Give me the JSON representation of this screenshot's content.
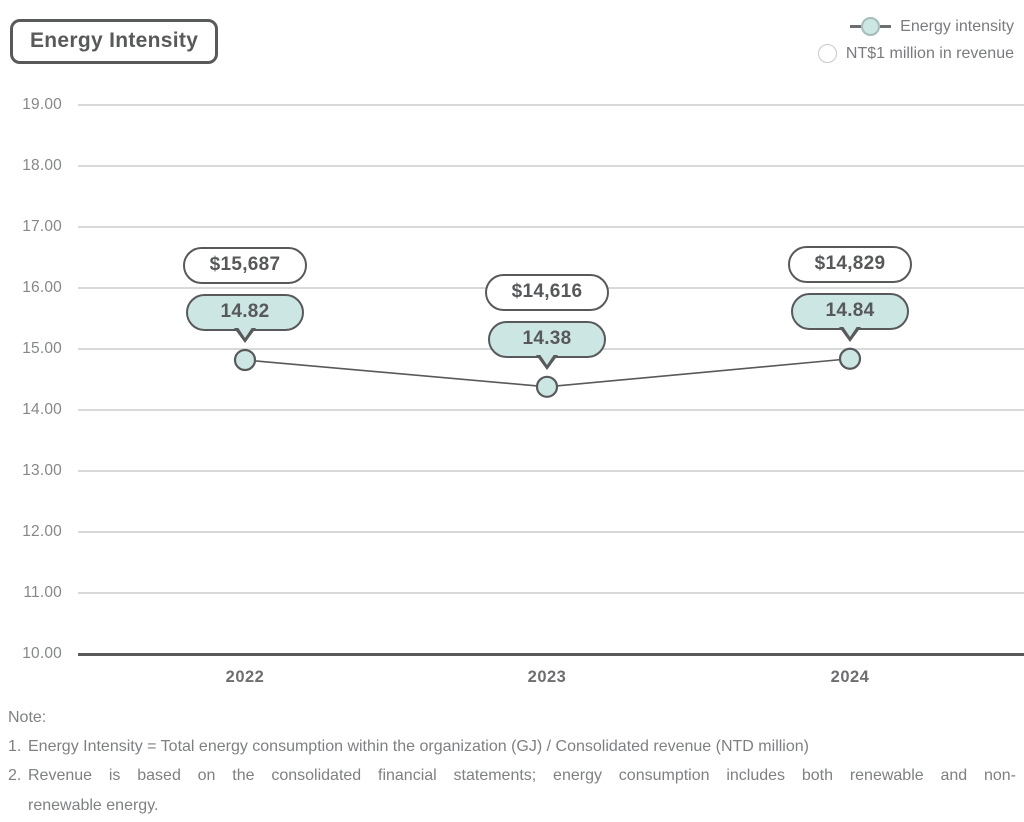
{
  "title": "Energy Intensity",
  "legend": {
    "position": "top-right",
    "items": [
      {
        "id": "energy-intensity",
        "label": "Energy intensity",
        "marker": "teal-circle-on-line"
      },
      {
        "id": "revenue",
        "label": "NT$1 million in revenue",
        "marker": "white-circle"
      }
    ]
  },
  "chart_data": {
    "type": "line",
    "categories": [
      "2022",
      "2023",
      "2024"
    ],
    "series": [
      {
        "name": "Energy intensity",
        "values": [
          14.82,
          14.38,
          14.84
        ],
        "labels": [
          "14.82",
          "14.38",
          "14.84"
        ],
        "marker": "teal-circle",
        "callout": "teal-rounded-bubble-with-tail"
      },
      {
        "name": "NT$1 million in revenue",
        "values": [
          15687,
          14616,
          14829
        ],
        "labels": [
          "$15,687",
          "$14,616",
          "$14,829"
        ],
        "callout": "white-rounded-bubble"
      }
    ],
    "xlabel": "",
    "ylabel": "",
    "ylim": [
      10,
      19
    ],
    "ytick_step": 1,
    "yticks": [
      "19.00",
      "18.00",
      "17.00",
      "16.00",
      "15.00",
      "14.00",
      "13.00",
      "12.00",
      "11.00",
      "10.00"
    ],
    "grid": true,
    "legend_position": "top-right"
  },
  "colors": {
    "teal_fill": "#cce6e4",
    "dark_gray": "#58595b",
    "text_gray": "#7e8083",
    "tick_gray": "#85878a",
    "gridline": "#d8d9da",
    "white": "#ffffff"
  },
  "note": {
    "heading": "Note:",
    "items": [
      {
        "num": "1.",
        "text": "Energy Intensity = Total energy consumption within the organization (GJ) / Consolidated revenue (NTD million)"
      },
      {
        "num": "2.",
        "text": "Revenue is based on the consolidated financial statements; energy consumption includes both renewable and non-",
        "text2": "renewable energy."
      }
    ]
  }
}
